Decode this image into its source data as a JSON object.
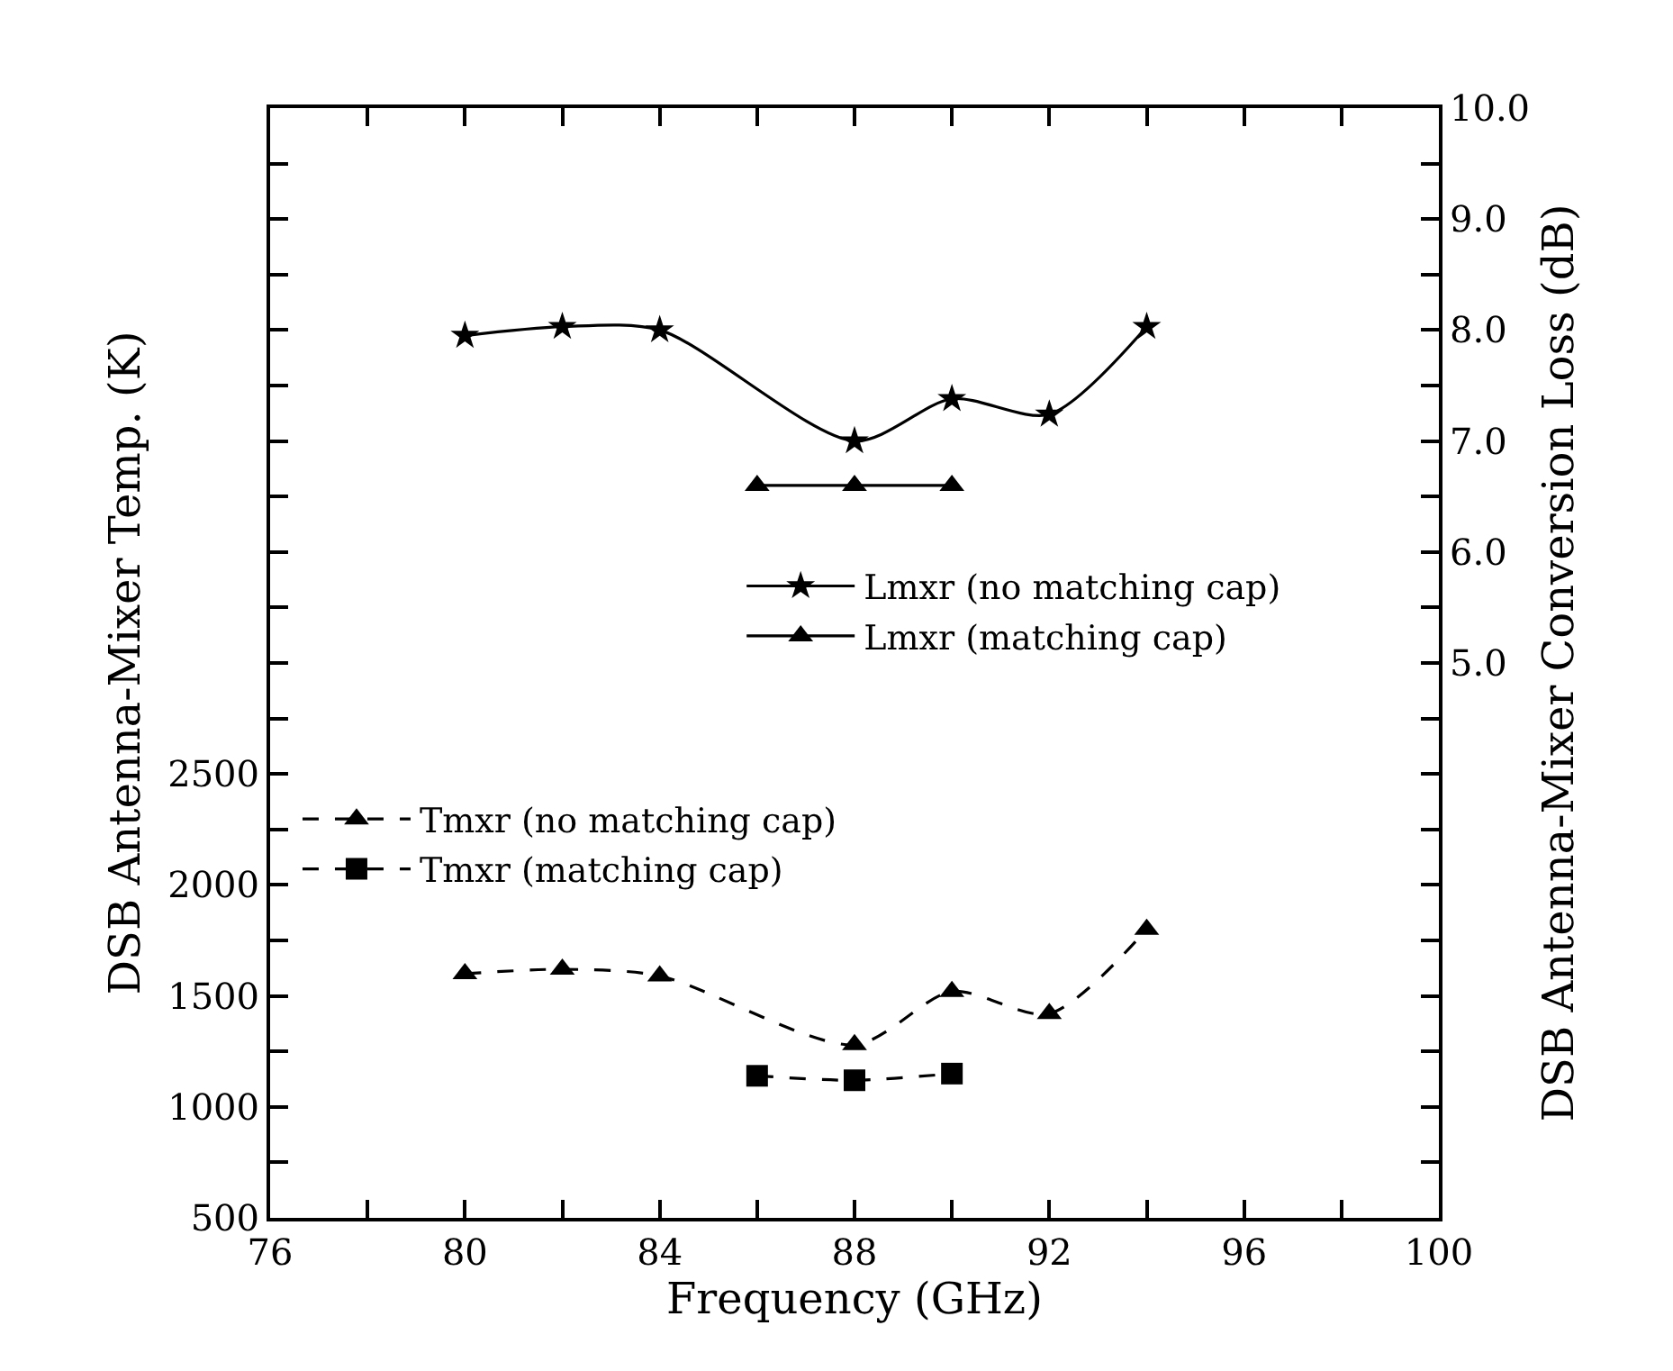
{
  "chart_data": {
    "type": "line",
    "xlabel": "Frequency (GHz)",
    "ylabel": "DSB Antenna-Mixer Temp. (K)",
    "y2label": "DSB Antenna-Mixer Conversion Loss (dB)",
    "xlim": [
      76,
      100
    ],
    "xticks": [
      76,
      {
        "value": 78,
        "label": null
      },
      80,
      {
        "value": 82,
        "label": null
      },
      84,
      {
        "value": 86,
        "label": null
      },
      88,
      {
        "value": 90,
        "label": null
      },
      92,
      {
        "value": 94,
        "label": null
      },
      96,
      {
        "value": 98,
        "label": null
      },
      100
    ],
    "ylim": [
      500,
      5500
    ],
    "yticks": [
      500,
      {
        "value": 750,
        "label": null
      },
      1000,
      {
        "value": 1250,
        "label": null
      },
      1500,
      {
        "value": 1750,
        "label": null
      },
      2000,
      {
        "value": 2250,
        "label": null
      },
      2500,
      {
        "value": 2750,
        "label": null
      },
      {
        "value": 3000,
        "label": null
      },
      {
        "value": 3250,
        "label": null
      },
      {
        "value": 3500,
        "label": null
      },
      {
        "value": 3750,
        "label": null
      },
      {
        "value": 4000,
        "label": null
      },
      {
        "value": 4250,
        "label": null
      },
      {
        "value": 4500,
        "label": null
      },
      {
        "value": 4750,
        "label": null
      },
      {
        "value": 5000,
        "label": null
      },
      {
        "value": 5250,
        "label": null
      }
    ],
    "y2lim": [
      0,
      10
    ],
    "y2ticks": [
      {
        "value": 0.5,
        "label": null
      },
      {
        "value": 1.0,
        "label": null
      },
      {
        "value": 1.5,
        "label": null
      },
      {
        "value": 2.0,
        "label": null
      },
      {
        "value": 2.5,
        "label": null
      },
      {
        "value": 3.0,
        "label": null
      },
      {
        "value": 3.5,
        "label": null
      },
      {
        "value": 4.0,
        "label": null
      },
      {
        "value": 4.5,
        "label": null
      },
      {
        "value": 5.0,
        "label": "5.0"
      },
      {
        "value": 5.5,
        "label": null
      },
      {
        "value": 6.0,
        "label": "6.0"
      },
      {
        "value": 6.5,
        "label": null
      },
      {
        "value": 7.0,
        "label": "7.0"
      },
      {
        "value": 7.5,
        "label": null
      },
      {
        "value": 8.0,
        "label": "8.0"
      },
      {
        "value": 8.5,
        "label": null
      },
      {
        "value": 9.0,
        "label": "9.0"
      },
      {
        "value": 9.5,
        "label": null
      },
      {
        "value": 10.0,
        "label": "10.0"
      }
    ],
    "grid": false,
    "legend": "left",
    "series": [
      {
        "name": "Lmxr (no matching cap)",
        "color": "#000000",
        "axis": "y2",
        "marker": "star",
        "line_style": "solid",
        "x": [
          80,
          82,
          84,
          88,
          90,
          92,
          94
        ],
        "values": [
          7.95,
          8.03,
          8.0,
          7.0,
          7.38,
          7.24,
          8.03
        ]
      },
      {
        "name": "Lmxr (matching cap)",
        "color": "#000000",
        "axis": "y2",
        "marker": "triangle",
        "line_style": "solid",
        "x": [
          86,
          88,
          90
        ],
        "values": [
          6.6,
          6.6,
          6.6
        ]
      },
      {
        "name": "Tmxr (no matching cap)",
        "color": "#000000",
        "marker": "triangle",
        "line_style": "dashed",
        "x": [
          80,
          82,
          84,
          88,
          90,
          92,
          94
        ],
        "values": [
          1600,
          1620,
          1590,
          1280,
          1520,
          1420,
          1800
        ]
      },
      {
        "name": "Tmxr (matching cap)",
        "color": "#000000",
        "marker": "square",
        "line_style": "dashed",
        "x": [
          86,
          88,
          90
        ],
        "values": [
          1140,
          1120,
          1150
        ]
      }
    ]
  }
}
